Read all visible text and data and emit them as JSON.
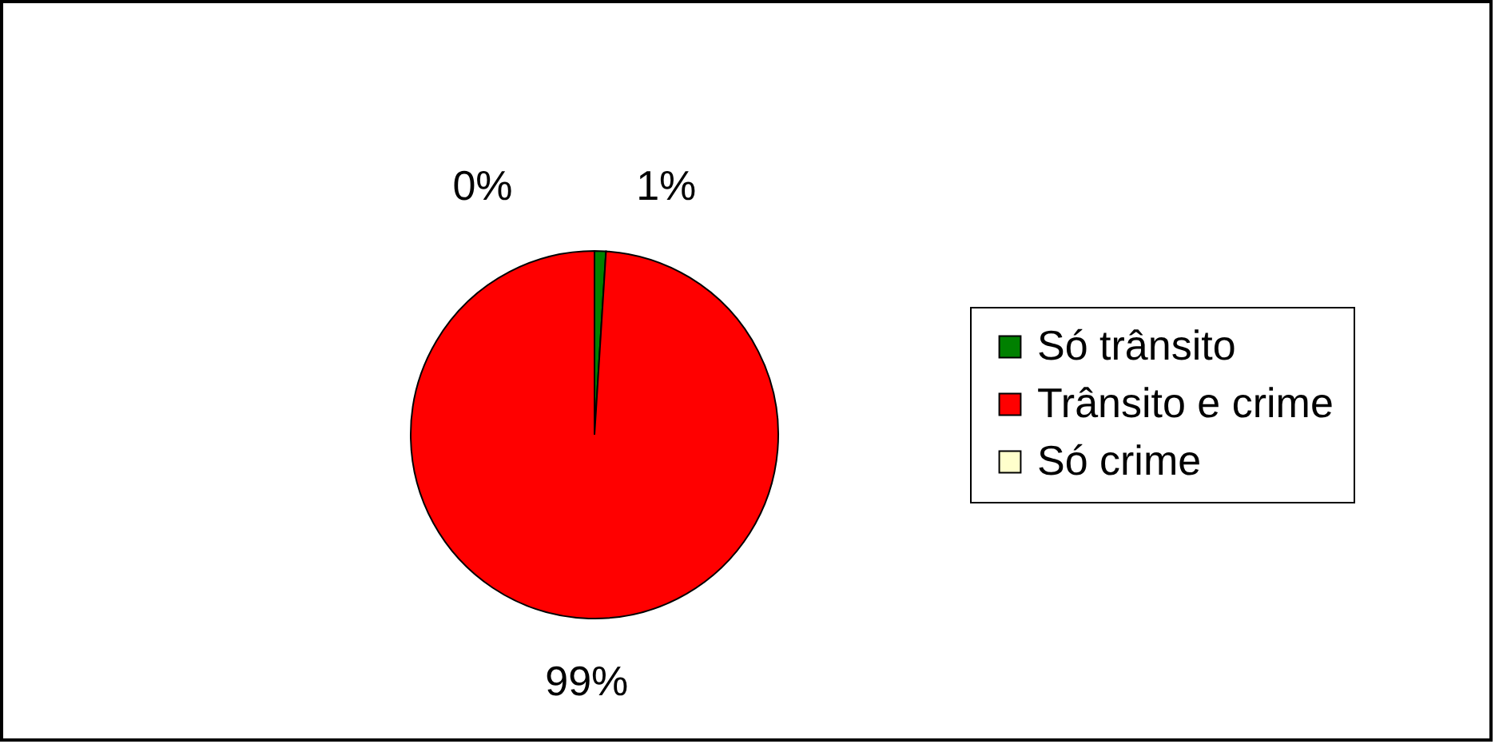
{
  "chart_data": {
    "type": "pie",
    "categories": [
      "Só trânsito",
      "Trânsito e crime",
      "Só crime"
    ],
    "values": [
      1,
      99,
      0
    ],
    "colors": [
      "#008000",
      "#ff0000",
      "#ffffcc"
    ],
    "value_labels": [
      "1%",
      "99%",
      "0%"
    ],
    "legend": "right"
  }
}
